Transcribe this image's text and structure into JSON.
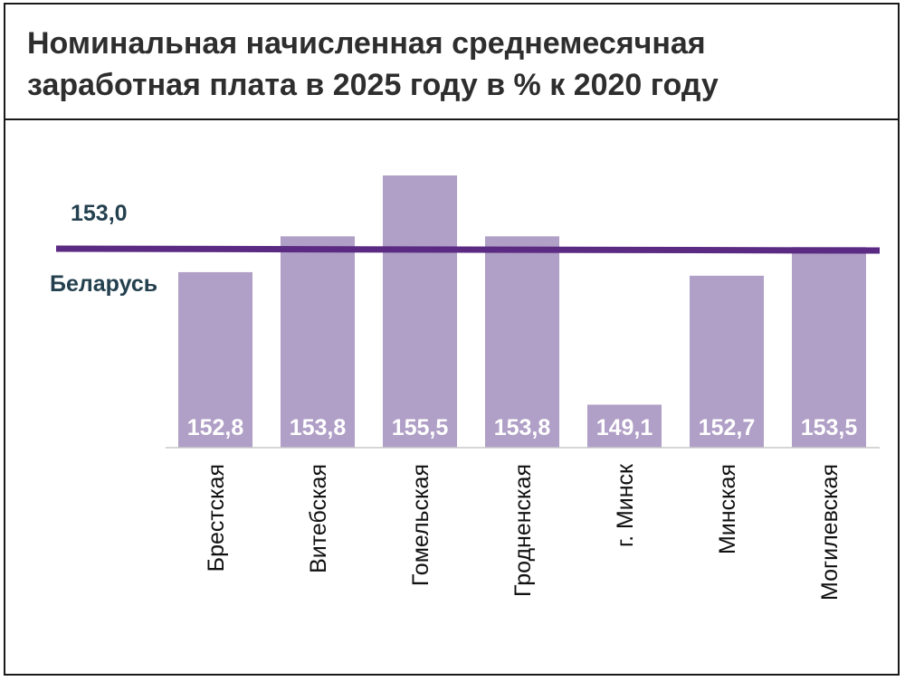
{
  "title": "Номинальная начисленная среднемесячная\nзаработная плата  в 2025 году в % к 2020 году",
  "chart_data": {
    "type": "bar",
    "title": "Номинальная начисленная среднемесячная заработная плата  в 2025 году в % к 2020 году",
    "categories": [
      "Брестская",
      "Витебская",
      "Гомельская",
      "Гродненская",
      "г. Минск",
      "Минская",
      "Могилевская"
    ],
    "values": [
      152.8,
      153.8,
      155.5,
      153.8,
      149.1,
      152.7,
      153.5
    ],
    "value_labels": [
      "152,8",
      "153,8",
      "155,5",
      "153,8",
      "149,1",
      "152,7",
      "153,5"
    ],
    "reference_line": {
      "value": 153.0,
      "value_label": "153,0",
      "label": "Беларусь"
    },
    "bar_color": "#b09fc6",
    "line_color": "#5b2a83",
    "label_color": "#24404f",
    "grid": false,
    "legend": "none"
  }
}
